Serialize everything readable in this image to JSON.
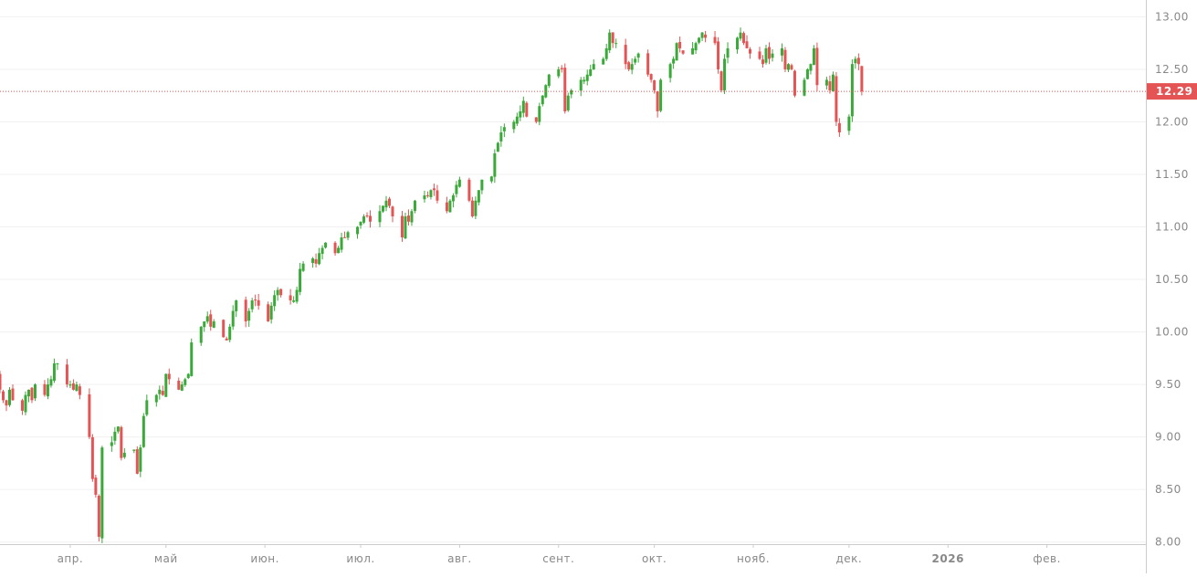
{
  "colors": {
    "up": "#3aa93a",
    "down": "#e55454",
    "grid": "#f0f0f0",
    "axis": "#cccccc",
    "price_line": "#e55454",
    "price_label_bg": "#e55454"
  },
  "chart_data": {
    "type": "candlestick",
    "title": "",
    "xlabel": "",
    "ylabel": "",
    "ylim": [
      7.98,
      13.16
    ],
    "grid": true,
    "y_axis_position": "right",
    "yticks": [
      "8.00",
      "8.50",
      "9.00",
      "9.50",
      "10.00",
      "10.50",
      "11.00",
      "11.50",
      "12.00",
      "12.50",
      "13.00"
    ],
    "xticks": [
      "апр.",
      "май",
      "июн.",
      "июл.",
      "авг.",
      "сент.",
      "окт.",
      "нояб.",
      "дек.",
      "2026",
      "фев."
    ],
    "x_range": [
      "2025-03-10",
      "2026-03-04"
    ],
    "xtick_dates": [
      "2025-04-01",
      "2025-05-01",
      "2025-06-01",
      "2025-07-01",
      "2025-08-01",
      "2025-09-01",
      "2025-10-01",
      "2025-11-01",
      "2025-12-01",
      "2026-01-01",
      "2026-02-01"
    ],
    "last_price": "12.29",
    "series": [
      {
        "dates_start": "2025-03-10",
        "closes": [
          9.45,
          9.35,
          9.3,
          9.45,
          9.35,
          9.25,
          9.4,
          9.45,
          9.35,
          9.5,
          9.4,
          9.5,
          9.55,
          9.7,
          9.7,
          9.5,
          9.5,
          9.45,
          9.5,
          9.4,
          9.0,
          8.6,
          8.45,
          8.05,
          8.9,
          8.95,
          9.05,
          9.1,
          8.8,
          8.85,
          8.88,
          8.65,
          8.9,
          9.2,
          9.35,
          9.4,
          9.45,
          9.4,
          9.6,
          9.55,
          9.45,
          9.5,
          9.55,
          9.6,
          9.9,
          10.05,
          10.1,
          10.15,
          10.05,
          10.1,
          9.95,
          9.92,
          10.05,
          10.2,
          10.3,
          10.1,
          10.2,
          10.3,
          10.3,
          10.25,
          10.1,
          10.25,
          10.35,
          10.4,
          10.35,
          10.3,
          10.3,
          10.4,
          10.6,
          10.65,
          10.7,
          10.65,
          10.75,
          10.8,
          10.85,
          10.75,
          10.8,
          10.9,
          10.9,
          10.95,
          11.0,
          11.05,
          11.1,
          11.1,
          11.05,
          11.15,
          11.2,
          11.25,
          11.2,
          11.1,
          10.9,
          11.1,
          11.05,
          11.15,
          11.25,
          11.3,
          11.3,
          11.35,
          11.35,
          11.25,
          11.15,
          11.25,
          11.3,
          11.4,
          11.45,
          11.25,
          11.1,
          11.25,
          11.35,
          11.45,
          11.48,
          11.7,
          11.8,
          11.9,
          11.95,
          12.0,
          12.05,
          12.1,
          12.2,
          12.05,
          12.0,
          12.15,
          12.25,
          12.35,
          12.45,
          12.5,
          12.5,
          12.1,
          12.25,
          12.3,
          12.4,
          12.4,
          12.45,
          12.5,
          12.55,
          12.6,
          12.7,
          12.85,
          12.75,
          12.75,
          12.55,
          12.5,
          12.55,
          12.6,
          12.65,
          12.45,
          12.4,
          12.3,
          12.1,
          12.4,
          12.55,
          12.6,
          12.75,
          12.7,
          12.65,
          12.7,
          12.75,
          12.8,
          12.85,
          12.8,
          12.75,
          12.5,
          12.3,
          12.6,
          12.7,
          12.8,
          12.85,
          12.75,
          12.7,
          12.65,
          12.6,
          12.55,
          12.7,
          12.6,
          12.65,
          12.7,
          12.5,
          12.55,
          12.5,
          12.25,
          12.4,
          12.5,
          12.55,
          12.7,
          12.35,
          12.4,
          12.3,
          12.45,
          12.0,
          11.9,
          12.05,
          12.55,
          12.6,
          12.55,
          12.29
        ]
      }
    ]
  }
}
